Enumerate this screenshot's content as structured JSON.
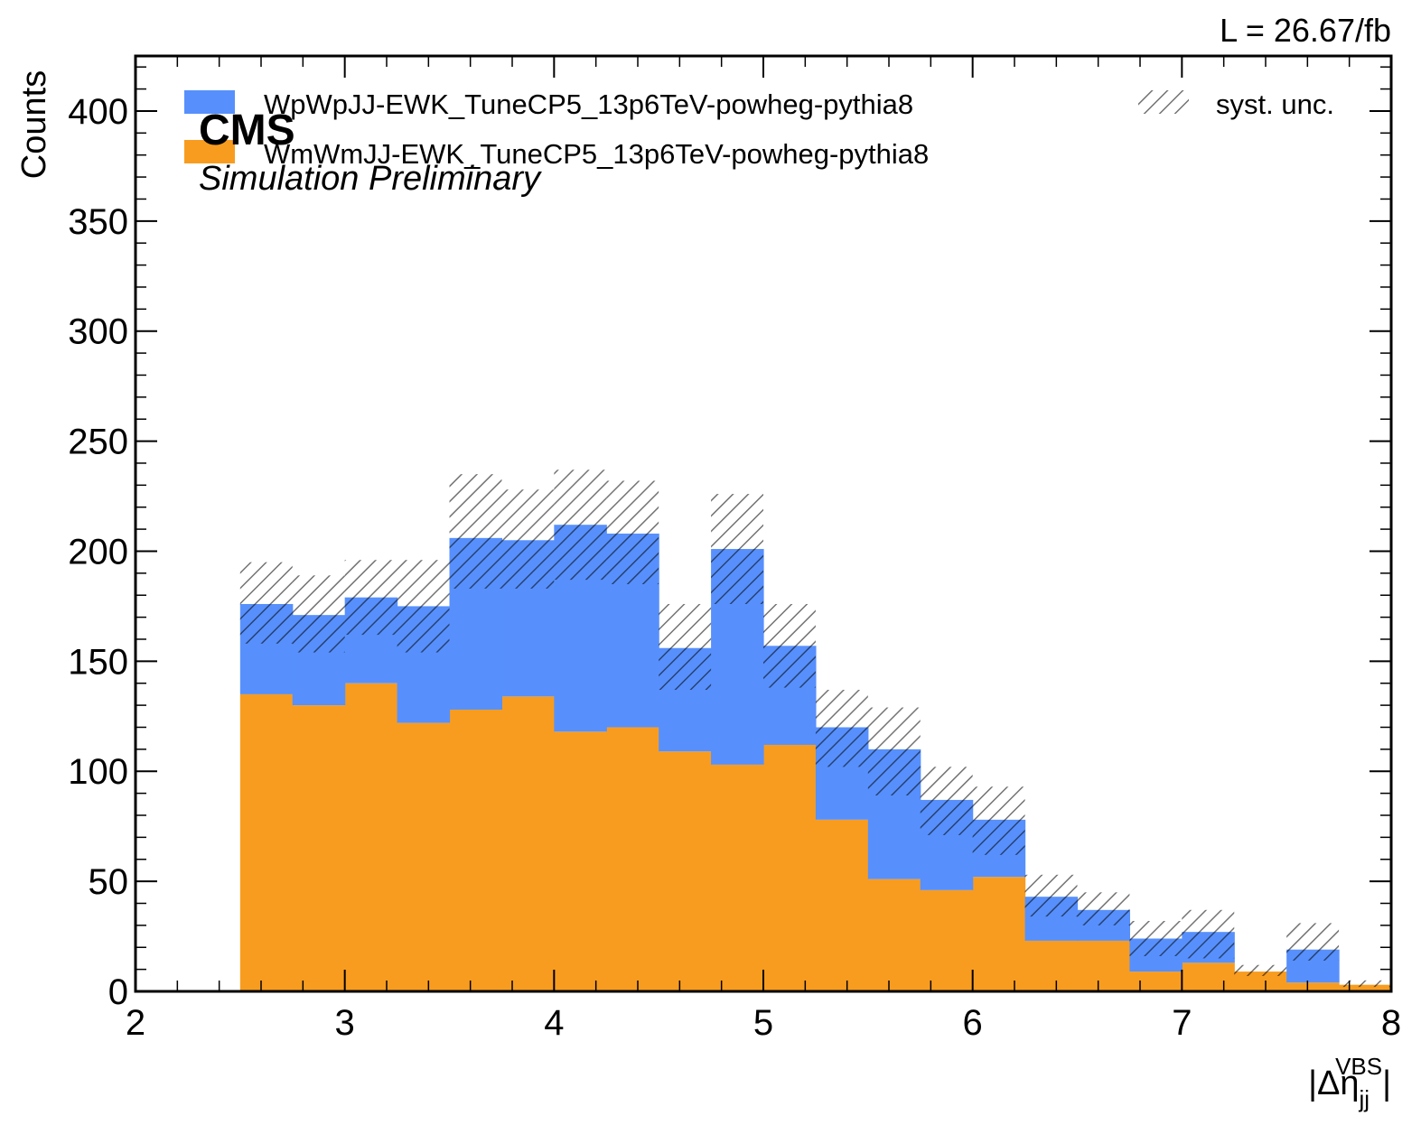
{
  "chart_data": {
    "type": "bar",
    "stacked": true,
    "histogram": true,
    "bin_edges": [
      2.0,
      2.25,
      2.5,
      2.75,
      3.0,
      3.25,
      3.5,
      3.75,
      4.0,
      4.25,
      4.5,
      4.75,
      5.0,
      5.25,
      5.5,
      5.75,
      6.0,
      6.25,
      6.5,
      6.75,
      7.0,
      7.25,
      7.5,
      7.75,
      8.0
    ],
    "series": [
      {
        "name": "WmWmJJ-EWK_TuneCP5_13p6TeV-powheg-pythia8",
        "color": "#f89c20",
        "values": [
          0,
          0,
          135,
          130,
          140,
          122,
          128,
          134,
          118,
          120,
          109,
          103,
          112,
          78,
          51,
          46,
          52,
          23,
          23,
          9,
          13,
          9,
          4,
          3
        ]
      },
      {
        "name": "WpWpJJ-EWK_TuneCP5_13p6TeV-powheg-pythia8",
        "color": "#5790fc",
        "values": [
          0,
          0,
          41,
          41,
          39,
          53,
          78,
          71,
          94,
          88,
          47,
          98,
          45,
          42,
          59,
          41,
          26,
          20,
          14,
          15,
          14,
          0,
          15,
          0
        ]
      }
    ],
    "syst_unc": {
      "name": "syst. unc.",
      "color": "#7f7f7f",
      "lower": [
        0,
        0,
        158,
        154,
        162,
        154,
        183,
        183,
        187,
        185,
        137,
        176,
        138,
        102,
        89,
        71,
        62,
        34,
        30,
        16,
        15,
        7,
        14,
        2
      ],
      "upper": [
        0,
        0,
        195,
        189,
        196,
        196,
        235,
        228,
        237,
        232,
        176,
        226,
        176,
        137,
        129,
        102,
        93,
        53,
        45,
        32,
        37,
        12,
        31,
        5
      ]
    },
    "xlabel": "|Δη_jj^VBS|",
    "ylabel": "Counts",
    "xlim": [
      2,
      8
    ],
    "ylim": [
      0,
      425
    ],
    "x_ticks": [
      2,
      3,
      4,
      5,
      6,
      7,
      8
    ],
    "y_ticks": [
      0,
      50,
      100,
      150,
      200,
      250,
      300,
      350,
      400
    ],
    "grid": false,
    "legend_position": "top"
  },
  "labels": {
    "lumi": "L = 26.67/fb",
    "experiment": "CMS",
    "status": "Simulation Preliminary",
    "ylabel": "Counts",
    "xlabel_base": "|Δη",
    "xlabel_sub": "jj",
    "xlabel_sup": "VBS",
    "xlabel_end": "|"
  }
}
